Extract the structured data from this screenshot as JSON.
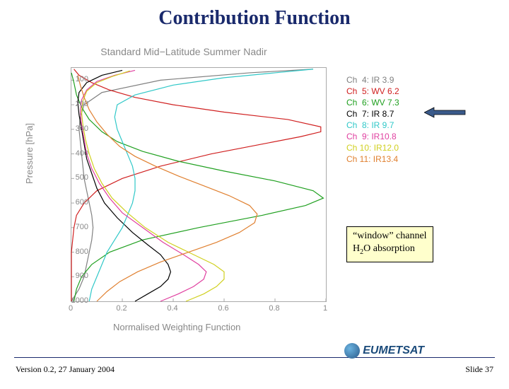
{
  "slide": {
    "title": "Contribution Function",
    "version_text": "Version 0.2, 27 January 2004",
    "slide_number": "Slide 37",
    "logo_text": "EUMETSAT"
  },
  "callout": {
    "line1": "“window” channel",
    "line2_pre": "H",
    "line2_sub": "2",
    "line2_post": "O absorption"
  },
  "chart": {
    "title": "Standard Mid−Latitude Summer Nadir",
    "ylabel": "Pressure [hPa]",
    "xlabel": "Normalised Weighting Function",
    "xlim": [
      0,
      1
    ],
    "ylim": [
      1000,
      50
    ],
    "xticks": [
      0,
      0.2,
      0.4,
      0.6,
      0.8,
      1
    ],
    "yticks": [
      100,
      200,
      300,
      400,
      500,
      600,
      700,
      800,
      900,
      1000
    ],
    "background_color": "#ffffff",
    "axis_color": "#aaaaaa",
    "label_fontsize": 13,
    "tick_fontsize": 11,
    "title_fontsize": 14,
    "line_width": 1.2,
    "legend": [
      {
        "text": "Ch  4: IR 3.9",
        "color": "#808080"
      },
      {
        "text": "Ch  5: WV 6.2",
        "color": "#d02020"
      },
      {
        "text": "Ch  6: WV 7.3",
        "color": "#20a020"
      },
      {
        "text": "Ch  7: IR 8.7",
        "color": "#000000"
      },
      {
        "text": "Ch  8: IR 9.7",
        "color": "#30c8c8"
      },
      {
        "text": "Ch  9: IR10.8",
        "color": "#e040a0"
      },
      {
        "text": "Ch 10: IR12.0",
        "color": "#d0d020"
      },
      {
        "text": "Ch 11: IR13.4",
        "color": "#e08030"
      }
    ],
    "series": [
      {
        "color": "#808080",
        "points": [
          [
            0.0,
            1000
          ],
          [
            0.03,
            950
          ],
          [
            0.05,
            900
          ],
          [
            0.06,
            850
          ],
          [
            0.07,
            800
          ],
          [
            0.08,
            750
          ],
          [
            0.085,
            700
          ],
          [
            0.08,
            650
          ],
          [
            0.07,
            600
          ],
          [
            0.06,
            550
          ],
          [
            0.05,
            500
          ],
          [
            0.045,
            450
          ],
          [
            0.04,
            400
          ],
          [
            0.035,
            350
          ],
          [
            0.03,
            300
          ],
          [
            0.035,
            250
          ],
          [
            0.05,
            200
          ],
          [
            0.12,
            150
          ],
          [
            0.35,
            100
          ],
          [
            0.7,
            70
          ],
          [
            0.95,
            55
          ]
        ]
      },
      {
        "color": "#d02020",
        "points": [
          [
            0.0,
            1000
          ],
          [
            0.0,
            900
          ],
          [
            0.0,
            800
          ],
          [
            0.01,
            700
          ],
          [
            0.02,
            650
          ],
          [
            0.05,
            600
          ],
          [
            0.1,
            550
          ],
          [
            0.2,
            500
          ],
          [
            0.35,
            450
          ],
          [
            0.55,
            400
          ],
          [
            0.75,
            360
          ],
          [
            0.9,
            330
          ],
          [
            0.98,
            310
          ],
          [
            0.98,
            290
          ],
          [
            0.85,
            260
          ],
          [
            0.6,
            230
          ],
          [
            0.4,
            200
          ],
          [
            0.25,
            170
          ],
          [
            0.15,
            140
          ],
          [
            0.08,
            110
          ],
          [
            0.03,
            80
          ],
          [
            0.01,
            55
          ]
        ]
      },
      {
        "color": "#20a020",
        "points": [
          [
            0.01,
            1000
          ],
          [
            0.02,
            950
          ],
          [
            0.04,
            900
          ],
          [
            0.08,
            850
          ],
          [
            0.15,
            800
          ],
          [
            0.28,
            750
          ],
          [
            0.5,
            700
          ],
          [
            0.75,
            650
          ],
          [
            0.92,
            610
          ],
          [
            0.99,
            580
          ],
          [
            0.95,
            550
          ],
          [
            0.8,
            510
          ],
          [
            0.6,
            470
          ],
          [
            0.42,
            430
          ],
          [
            0.28,
            390
          ],
          [
            0.18,
            350
          ],
          [
            0.12,
            310
          ],
          [
            0.07,
            260
          ],
          [
            0.04,
            210
          ],
          [
            0.02,
            160
          ],
          [
            0.01,
            110
          ],
          [
            0.0,
            70
          ]
        ]
      },
      {
        "color": "#000000",
        "points": [
          [
            0.25,
            1000
          ],
          [
            0.3,
            970
          ],
          [
            0.35,
            940
          ],
          [
            0.38,
            910
          ],
          [
            0.39,
            880
          ],
          [
            0.38,
            850
          ],
          [
            0.35,
            810
          ],
          [
            0.3,
            770
          ],
          [
            0.24,
            720
          ],
          [
            0.18,
            660
          ],
          [
            0.13,
            600
          ],
          [
            0.1,
            540
          ],
          [
            0.08,
            480
          ],
          [
            0.06,
            420
          ],
          [
            0.05,
            360
          ],
          [
            0.04,
            300
          ],
          [
            0.03,
            240
          ],
          [
            0.025,
            190
          ],
          [
            0.03,
            150
          ],
          [
            0.06,
            110
          ],
          [
            0.12,
            80
          ],
          [
            0.2,
            60
          ]
        ]
      },
      {
        "color": "#30c8c8",
        "points": [
          [
            0.07,
            1000
          ],
          [
            0.08,
            950
          ],
          [
            0.1,
            900
          ],
          [
            0.12,
            850
          ],
          [
            0.14,
            800
          ],
          [
            0.17,
            750
          ],
          [
            0.2,
            700
          ],
          [
            0.22,
            650
          ],
          [
            0.24,
            600
          ],
          [
            0.25,
            550
          ],
          [
            0.25,
            500
          ],
          [
            0.24,
            450
          ],
          [
            0.22,
            400
          ],
          [
            0.2,
            350
          ],
          [
            0.18,
            300
          ],
          [
            0.17,
            250
          ],
          [
            0.18,
            200
          ],
          [
            0.25,
            160
          ],
          [
            0.4,
            120
          ],
          [
            0.6,
            90
          ],
          [
            0.8,
            70
          ],
          [
            0.95,
            55
          ]
        ]
      },
      {
        "color": "#e040a0",
        "points": [
          [
            0.35,
            1000
          ],
          [
            0.42,
            970
          ],
          [
            0.48,
            940
          ],
          [
            0.52,
            910
          ],
          [
            0.53,
            880
          ],
          [
            0.5,
            850
          ],
          [
            0.44,
            810
          ],
          [
            0.36,
            760
          ],
          [
            0.28,
            700
          ],
          [
            0.2,
            640
          ],
          [
            0.15,
            580
          ],
          [
            0.11,
            520
          ],
          [
            0.08,
            460
          ],
          [
            0.06,
            400
          ],
          [
            0.05,
            340
          ],
          [
            0.04,
            280
          ],
          [
            0.035,
            230
          ],
          [
            0.04,
            180
          ],
          [
            0.06,
            140
          ],
          [
            0.1,
            105
          ],
          [
            0.17,
            80
          ],
          [
            0.25,
            60
          ]
        ]
      },
      {
        "color": "#d0d020",
        "points": [
          [
            0.45,
            1000
          ],
          [
            0.52,
            970
          ],
          [
            0.57,
            940
          ],
          [
            0.6,
            910
          ],
          [
            0.6,
            880
          ],
          [
            0.56,
            850
          ],
          [
            0.48,
            810
          ],
          [
            0.38,
            760
          ],
          [
            0.29,
            700
          ],
          [
            0.22,
            640
          ],
          [
            0.16,
            580
          ],
          [
            0.12,
            520
          ],
          [
            0.09,
            460
          ],
          [
            0.07,
            400
          ],
          [
            0.055,
            340
          ],
          [
            0.045,
            280
          ],
          [
            0.04,
            230
          ],
          [
            0.045,
            185
          ],
          [
            0.06,
            145
          ],
          [
            0.1,
            110
          ],
          [
            0.16,
            85
          ],
          [
            0.23,
            62
          ]
        ]
      },
      {
        "color": "#e08030",
        "points": [
          [
            0.1,
            1000
          ],
          [
            0.14,
            960
          ],
          [
            0.19,
            920
          ],
          [
            0.26,
            880
          ],
          [
            0.35,
            840
          ],
          [
            0.46,
            800
          ],
          [
            0.57,
            760
          ],
          [
            0.66,
            720
          ],
          [
            0.72,
            680
          ],
          [
            0.73,
            645
          ],
          [
            0.7,
            610
          ],
          [
            0.62,
            570
          ],
          [
            0.52,
            530
          ],
          [
            0.42,
            490
          ],
          [
            0.33,
            450
          ],
          [
            0.25,
            410
          ],
          [
            0.19,
            370
          ],
          [
            0.14,
            320
          ],
          [
            0.1,
            270
          ],
          [
            0.07,
            220
          ],
          [
            0.05,
            170
          ],
          [
            0.035,
            120
          ],
          [
            0.025,
            80
          ]
        ]
      }
    ]
  },
  "arrow": {
    "fill": "#3a5a8a",
    "stroke": "#000000"
  }
}
